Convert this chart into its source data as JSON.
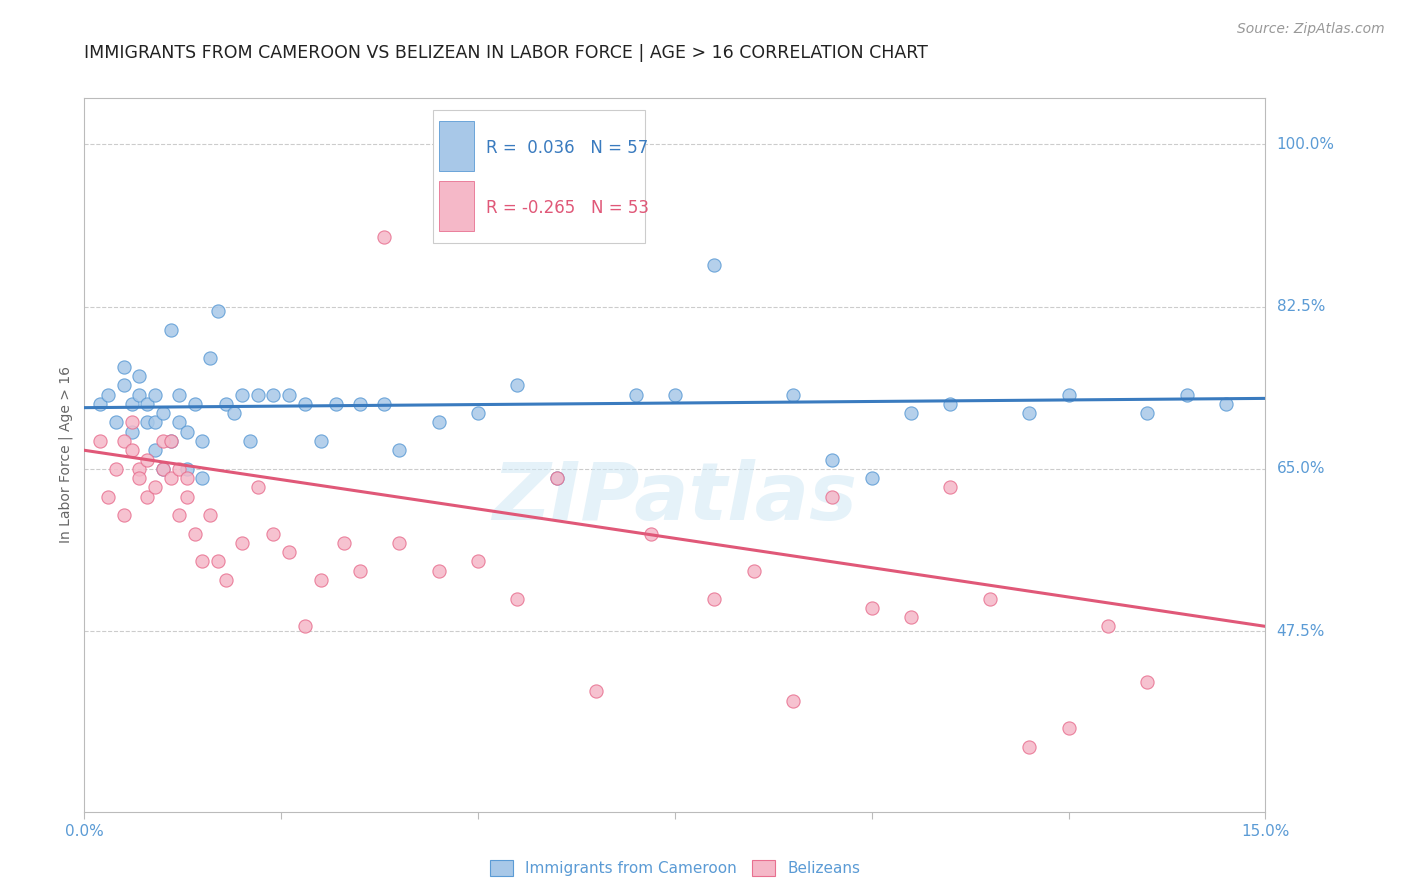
{
  "title": "IMMIGRANTS FROM CAMEROON VS BELIZEAN IN LABOR FORCE | AGE > 16 CORRELATION CHART",
  "source": "Source: ZipAtlas.com",
  "ylabel": "In Labor Force | Age > 16",
  "xlim": [
    0.0,
    0.15
  ],
  "ylim": [
    0.28,
    1.05
  ],
  "ytick_positions": [
    0.475,
    0.65,
    0.825,
    1.0
  ],
  "ytick_labels": [
    "47.5%",
    "65.0%",
    "82.5%",
    "100.0%"
  ],
  "grid_color": "#cccccc",
  "background_color": "#ffffff",
  "blue_color": "#a8c8e8",
  "blue_edge_color": "#5b9bd5",
  "blue_line_color": "#3a7bbf",
  "pink_color": "#f5b8c8",
  "pink_edge_color": "#e87090",
  "pink_line_color": "#e05878",
  "blue_scatter_x": [
    0.002,
    0.003,
    0.004,
    0.005,
    0.005,
    0.006,
    0.006,
    0.007,
    0.007,
    0.008,
    0.008,
    0.009,
    0.009,
    0.009,
    0.01,
    0.01,
    0.011,
    0.011,
    0.012,
    0.012,
    0.013,
    0.013,
    0.014,
    0.015,
    0.015,
    0.016,
    0.017,
    0.018,
    0.019,
    0.02,
    0.021,
    0.022,
    0.024,
    0.026,
    0.028,
    0.03,
    0.032,
    0.035,
    0.038,
    0.04,
    0.045,
    0.05,
    0.055,
    0.06,
    0.07,
    0.075,
    0.08,
    0.09,
    0.095,
    0.1,
    0.105,
    0.11,
    0.12,
    0.125,
    0.135,
    0.14,
    0.145
  ],
  "blue_scatter_y": [
    0.72,
    0.73,
    0.7,
    0.74,
    0.76,
    0.69,
    0.72,
    0.73,
    0.75,
    0.7,
    0.72,
    0.67,
    0.7,
    0.73,
    0.65,
    0.71,
    0.68,
    0.8,
    0.7,
    0.73,
    0.65,
    0.69,
    0.72,
    0.64,
    0.68,
    0.77,
    0.82,
    0.72,
    0.71,
    0.73,
    0.68,
    0.73,
    0.73,
    0.73,
    0.72,
    0.68,
    0.72,
    0.72,
    0.72,
    0.67,
    0.7,
    0.71,
    0.74,
    0.64,
    0.73,
    0.73,
    0.87,
    0.73,
    0.66,
    0.64,
    0.71,
    0.72,
    0.71,
    0.73,
    0.71,
    0.73,
    0.72
  ],
  "pink_scatter_x": [
    0.002,
    0.003,
    0.004,
    0.005,
    0.005,
    0.006,
    0.006,
    0.007,
    0.007,
    0.008,
    0.008,
    0.009,
    0.01,
    0.01,
    0.011,
    0.011,
    0.012,
    0.012,
    0.013,
    0.013,
    0.014,
    0.015,
    0.016,
    0.017,
    0.018,
    0.02,
    0.022,
    0.024,
    0.026,
    0.028,
    0.03,
    0.033,
    0.035,
    0.038,
    0.04,
    0.045,
    0.05,
    0.055,
    0.06,
    0.065,
    0.072,
    0.08,
    0.085,
    0.09,
    0.095,
    0.1,
    0.105,
    0.11,
    0.115,
    0.12,
    0.125,
    0.13,
    0.135
  ],
  "pink_scatter_y": [
    0.68,
    0.62,
    0.65,
    0.68,
    0.6,
    0.7,
    0.67,
    0.65,
    0.64,
    0.62,
    0.66,
    0.63,
    0.65,
    0.68,
    0.68,
    0.64,
    0.6,
    0.65,
    0.62,
    0.64,
    0.58,
    0.55,
    0.6,
    0.55,
    0.53,
    0.57,
    0.63,
    0.58,
    0.56,
    0.48,
    0.53,
    0.57,
    0.54,
    0.9,
    0.57,
    0.54,
    0.55,
    0.51,
    0.64,
    0.41,
    0.58,
    0.51,
    0.54,
    0.4,
    0.62,
    0.5,
    0.49,
    0.63,
    0.51,
    0.35,
    0.37,
    0.48,
    0.42
  ],
  "blue_R": 0.036,
  "blue_N": 57,
  "pink_R": -0.265,
  "pink_N": 53,
  "blue_trend_x": [
    0.0,
    0.15
  ],
  "blue_trend_y": [
    0.716,
    0.726
  ],
  "pink_trend_x": [
    0.0,
    0.15
  ],
  "pink_trend_y": [
    0.67,
    0.48
  ],
  "legend_label_blue": "Immigrants from Cameroon",
  "legend_label_pink": "Belizeans",
  "title_fontsize": 12.5,
  "axis_label_fontsize": 10,
  "tick_fontsize": 11,
  "source_fontsize": 10,
  "axis_color": "#5b9bd5",
  "watermark": "ZIPatlas"
}
